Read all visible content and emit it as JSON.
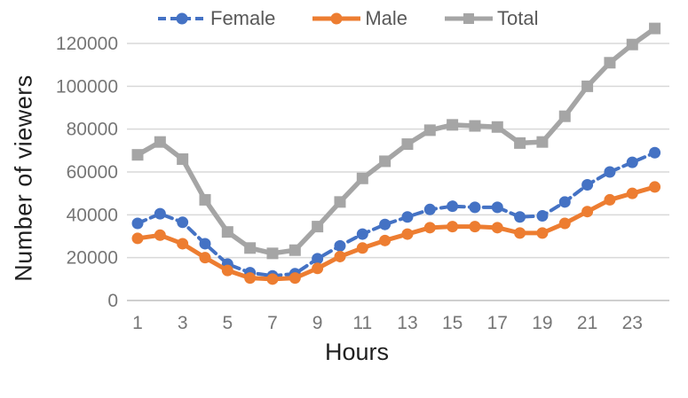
{
  "chart_data": {
    "type": "line",
    "title": "",
    "xlabel": "Hours",
    "ylabel": "Number of viewers",
    "x": [
      1,
      2,
      3,
      4,
      5,
      6,
      7,
      8,
      9,
      10,
      11,
      12,
      13,
      14,
      15,
      16,
      17,
      18,
      19,
      20,
      21,
      22,
      23,
      24
    ],
    "x_tick_labels": [
      "1",
      "3",
      "5",
      "7",
      "9",
      "11",
      "13",
      "15",
      "17",
      "19",
      "21",
      "23"
    ],
    "x_ticks": [
      1,
      3,
      5,
      7,
      9,
      11,
      13,
      15,
      17,
      19,
      21,
      23
    ],
    "y_ticks": [
      0,
      20000,
      40000,
      60000,
      80000,
      100000,
      120000
    ],
    "y_tick_labels": [
      "0",
      "20000",
      "40000",
      "60000",
      "80000",
      "100000",
      "120000"
    ],
    "xlim": [
      1,
      24
    ],
    "ylim": [
      0,
      130000
    ],
    "grid": "horizontal",
    "legend_position": "top",
    "series": [
      {
        "name": "Female",
        "color": "#4472C4",
        "line_style": "dashed",
        "marker": "circle",
        "values": [
          36000,
          40500,
          36500,
          26500,
          17000,
          13000,
          11500,
          12500,
          19500,
          25500,
          31000,
          35500,
          39000,
          42500,
          44000,
          43500,
          43500,
          39000,
          39500,
          46000,
          54000,
          60000,
          64500,
          69000
        ]
      },
      {
        "name": "Male",
        "color": "#ED7D31",
        "line_style": "solid",
        "marker": "circle",
        "values": [
          29000,
          30500,
          26500,
          20000,
          14000,
          10500,
          10000,
          10500,
          15000,
          20500,
          24500,
          28000,
          31000,
          34000,
          34500,
          34500,
          34000,
          31500,
          31500,
          36000,
          41500,
          47000,
          50000,
          53000
        ]
      },
      {
        "name": "Total",
        "color": "#A5A5A5",
        "line_style": "solid",
        "marker": "square",
        "values": [
          68000,
          74000,
          66000,
          47000,
          32000,
          24500,
          22000,
          23500,
          34500,
          46000,
          57000,
          65000,
          73000,
          79500,
          82000,
          81500,
          81000,
          73500,
          74000,
          86000,
          100000,
          111000,
          119500,
          127000
        ]
      }
    ],
    "colors": {
      "gridline": "#D9D9D9",
      "axis_line": "#BFBFBF",
      "tick_label": "#767676",
      "legend_text": "#595959",
      "axis_title": "#1F1F1F"
    }
  }
}
